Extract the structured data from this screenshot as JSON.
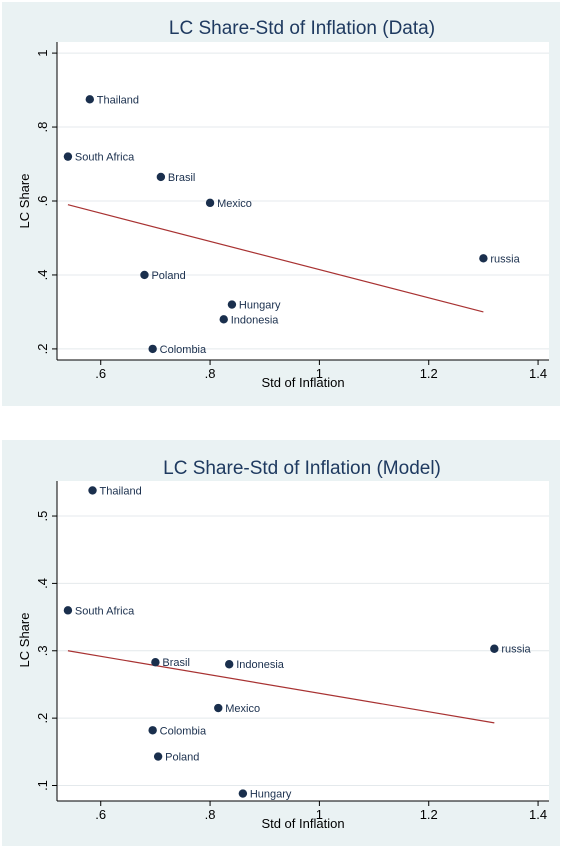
{
  "chart_data": [
    {
      "type": "scatter",
      "title": "LC Share-Std of Inflation (Data)",
      "xlabel": "Std of Inflation",
      "ylabel": "LC Share",
      "xlim": [
        0.52,
        1.42
      ],
      "ylim": [
        0.17,
        1.03
      ],
      "xticks": [
        0.6,
        0.8,
        1,
        1.2,
        1.4
      ],
      "xtick_labels": [
        ".6",
        ".8",
        "1",
        "1.2",
        "1.4"
      ],
      "yticks": [
        0.2,
        0.4,
        0.6,
        0.8,
        1
      ],
      "ytick_labels": [
        ".2",
        ".4",
        ".6",
        ".8",
        "1"
      ],
      "grid": true,
      "points": [
        {
          "label": "Thailand",
          "x": 0.58,
          "y": 0.875
        },
        {
          "label": "South Africa",
          "x": 0.54,
          "y": 0.72
        },
        {
          "label": "Brasil",
          "x": 0.71,
          "y": 0.665
        },
        {
          "label": "Mexico",
          "x": 0.8,
          "y": 0.595
        },
        {
          "label": "Poland",
          "x": 0.68,
          "y": 0.4
        },
        {
          "label": "Hungary",
          "x": 0.84,
          "y": 0.32
        },
        {
          "label": "Indonesia",
          "x": 0.825,
          "y": 0.28
        },
        {
          "label": "Colombia",
          "x": 0.695,
          "y": 0.2
        },
        {
          "label": "russia",
          "x": 1.3,
          "y": 0.445
        }
      ],
      "fit_line": {
        "x": [
          0.54,
          1.3
        ],
        "y": [
          0.59,
          0.3
        ]
      },
      "colors": {
        "marker": "#1a2f4d",
        "fit_line": "#a83232",
        "title": "#1f3a60",
        "background": "#eaf2f3",
        "plot_area": "#ffffff"
      }
    },
    {
      "type": "scatter",
      "title": "LC Share-Std of Inflation (Model)",
      "xlabel": "Std of Inflation",
      "ylabel": "LC Share",
      "xlim": [
        0.52,
        1.42
      ],
      "ylim": [
        0.077,
        0.552
      ],
      "xticks": [
        0.6,
        0.8,
        1,
        1.2,
        1.4
      ],
      "xtick_labels": [
        ".6",
        ".8",
        "1",
        "1.2",
        "1.4"
      ],
      "yticks": [
        0.1,
        0.2,
        0.3,
        0.4,
        0.5
      ],
      "ytick_labels": [
        ".1",
        ".2",
        ".3",
        ".4",
        ".5"
      ],
      "grid": true,
      "points": [
        {
          "label": "Thailand",
          "x": 0.585,
          "y": 0.538
        },
        {
          "label": "South Africa",
          "x": 0.54,
          "y": 0.36
        },
        {
          "label": "Brasil",
          "x": 0.7,
          "y": 0.283
        },
        {
          "label": "Indonesia",
          "x": 0.835,
          "y": 0.28
        },
        {
          "label": "Mexico",
          "x": 0.815,
          "y": 0.215
        },
        {
          "label": "Colombia",
          "x": 0.695,
          "y": 0.182
        },
        {
          "label": "Poland",
          "x": 0.705,
          "y": 0.143
        },
        {
          "label": "Hungary",
          "x": 0.86,
          "y": 0.088
        },
        {
          "label": "russia",
          "x": 1.32,
          "y": 0.303
        }
      ],
      "fit_line": {
        "x": [
          0.54,
          1.32
        ],
        "y": [
          0.3,
          0.193
        ]
      },
      "colors": {
        "marker": "#1a2f4d",
        "fit_line": "#a83232",
        "title": "#1f3a60",
        "background": "#eaf2f3",
        "plot_area": "#ffffff"
      }
    }
  ]
}
